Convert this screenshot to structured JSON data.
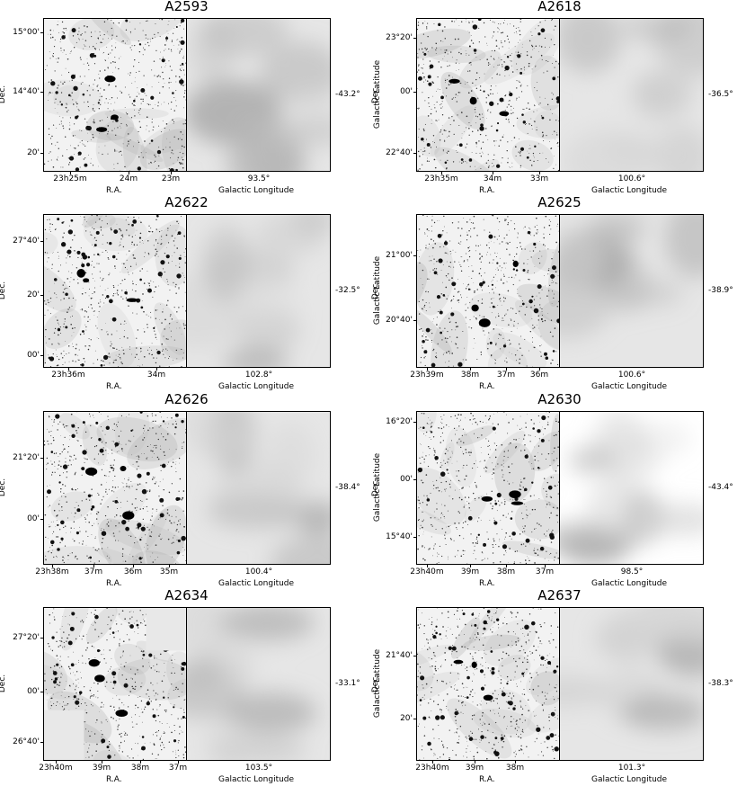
{
  "labels": {
    "ra": "R.A.",
    "dec": "Dec.",
    "glon": "Galactic Longitude",
    "glat": "Galactic Latitude"
  },
  "panels": [
    {
      "title": "A2593",
      "dec_ticks": [
        "15°00'",
        "14°40'",
        "20'"
      ],
      "ra_ticks": [
        "23h25m",
        "24m",
        "23m"
      ],
      "glon": "93.5°",
      "glat": "-43.2°"
    },
    {
      "title": "A2618",
      "dec_ticks": [
        "23°20'",
        "00'",
        "22°40'"
      ],
      "ra_ticks": [
        "23h35m",
        "34m",
        "33m"
      ],
      "glon": "100.6°",
      "glat": "-36.5°"
    },
    {
      "title": "A2622",
      "dec_ticks": [
        "27°40'",
        "20'",
        "00'"
      ],
      "ra_ticks": [
        "23h36m",
        "34m"
      ],
      "glon": "102.8°",
      "glat": "-32.5°"
    },
    {
      "title": "A2625",
      "dec_ticks": [
        "21°00'",
        "20°40'"
      ],
      "ra_ticks": [
        "23h39m",
        "38m",
        "37m",
        "36m"
      ],
      "glon": "100.6°",
      "glat": "-38.9°"
    },
    {
      "title": "A2626",
      "dec_ticks": [
        "21°20'",
        "00'"
      ],
      "ra_ticks": [
        "23h38m",
        "37m",
        "36m",
        "35m"
      ],
      "glon": "100.4°",
      "glat": "-38.4°"
    },
    {
      "title": "A2630",
      "dec_ticks": [
        "16°20'",
        "00'",
        "15°40'"
      ],
      "ra_ticks": [
        "23h40m",
        "39m",
        "38m",
        "37m"
      ],
      "glon": "98.5°",
      "glat": "-43.4°"
    },
    {
      "title": "A2634",
      "dec_ticks": [
        "27°20'",
        "00'",
        "26°40'"
      ],
      "ra_ticks": [
        "23h40m",
        "39m",
        "38m",
        "37m"
      ],
      "glon": "103.5°",
      "glat": "-33.1°"
    },
    {
      "title": "A2637",
      "dec_ticks": [
        "21°40'",
        "20'"
      ],
      "ra_ticks": [
        "23h40m",
        "39m",
        "38m"
      ],
      "glon": "101.3°",
      "glat": "-38.3°"
    }
  ]
}
